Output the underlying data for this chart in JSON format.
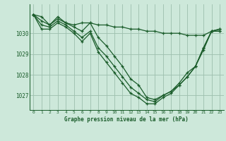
{
  "title": "Graphe pression niveau de la mer (hPa)",
  "bg_color": "#cde8da",
  "grid_color": "#9dbfad",
  "line_color": "#1a5c2a",
  "xlim": [
    -0.5,
    23.5
  ],
  "ylim": [
    1026.3,
    1031.4
  ],
  "yticks": [
    1027,
    1028,
    1029,
    1030
  ],
  "xticks": [
    0,
    1,
    2,
    3,
    4,
    5,
    6,
    7,
    8,
    9,
    10,
    11,
    12,
    13,
    14,
    15,
    16,
    17,
    18,
    19,
    20,
    21,
    22,
    23
  ],
  "series1_x": [
    0,
    1,
    2,
    3,
    4,
    5,
    6,
    7,
    8,
    9,
    10,
    11,
    12,
    13,
    14,
    15,
    16,
    17,
    18,
    19,
    20,
    21,
    22,
    23
  ],
  "series1_y": [
    1030.9,
    1030.8,
    1030.4,
    1030.8,
    1030.5,
    1030.4,
    1030.5,
    1030.5,
    1030.4,
    1030.4,
    1030.3,
    1030.3,
    1030.2,
    1030.2,
    1030.1,
    1030.1,
    1030.0,
    1030.0,
    1030.0,
    1029.9,
    1029.9,
    1029.9,
    1030.1,
    1030.2
  ],
  "series2_x": [
    0,
    1,
    2,
    3,
    4,
    5,
    6,
    7,
    8,
    9,
    10,
    11,
    12,
    13,
    14,
    15,
    16,
    17,
    18,
    19,
    20,
    21,
    22,
    23
  ],
  "series2_y": [
    1030.9,
    1030.6,
    1030.4,
    1030.7,
    1030.5,
    1030.3,
    1030.1,
    1030.5,
    1029.8,
    1029.4,
    1028.9,
    1028.4,
    1027.8,
    1027.5,
    1026.9,
    1026.8,
    1027.0,
    1027.2,
    1027.6,
    1028.1,
    1028.4,
    1029.3,
    1030.1,
    1030.2
  ],
  "series3_x": [
    0,
    1,
    2,
    3,
    4,
    5,
    6,
    7,
    8,
    9,
    10,
    11,
    12,
    13,
    14,
    15,
    16,
    17,
    18,
    19,
    20,
    21,
    22,
    23
  ],
  "series3_y": [
    1030.9,
    1030.4,
    1030.3,
    1030.6,
    1030.4,
    1030.1,
    1029.8,
    1030.1,
    1029.3,
    1028.9,
    1028.4,
    1027.9,
    1027.4,
    1027.1,
    1026.8,
    1026.7,
    1027.0,
    1027.2,
    1027.5,
    1027.9,
    1028.4,
    1029.3,
    1030.1,
    1030.1
  ],
  "series4_x": [
    0,
    1,
    2,
    3,
    4,
    5,
    6,
    7,
    8,
    9,
    10,
    11,
    12,
    13,
    14,
    15,
    16,
    17,
    18,
    19,
    20,
    21,
    22,
    23
  ],
  "series4_y": [
    1030.9,
    1030.2,
    1030.2,
    1030.5,
    1030.3,
    1030.0,
    1029.6,
    1030.0,
    1029.1,
    1028.6,
    1028.1,
    1027.6,
    1027.1,
    1026.9,
    1026.6,
    1026.6,
    1026.9,
    1027.1,
    1027.5,
    1027.9,
    1028.4,
    1029.2,
    1030.1,
    1030.1
  ]
}
